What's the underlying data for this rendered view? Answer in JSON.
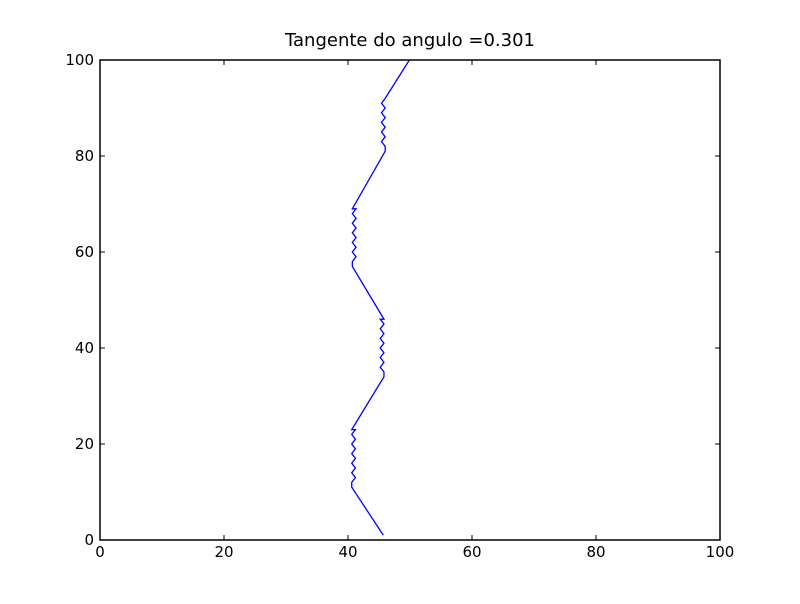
{
  "chart_data": {
    "type": "line",
    "title": "Tangente do angulo =0.301",
    "xlabel": "",
    "ylabel": "",
    "xlim": [
      0,
      100
    ],
    "ylim": [
      0,
      100
    ],
    "xticks": [
      "0",
      "20",
      "40",
      "60",
      "80",
      "100"
    ],
    "yticks": [
      "0",
      "20",
      "40",
      "60",
      "80",
      "100"
    ],
    "grid": false,
    "legend": "none",
    "series": [
      {
        "color": "#0000ff",
        "x": [
          45.7,
          40.6,
          40.6,
          41.2,
          40.6,
          41.2,
          40.6,
          41.2,
          40.6,
          41.2,
          40.6,
          41.2,
          40.6,
          41.2,
          40.6,
          45.8,
          45.8,
          45.2,
          45.8,
          45.2,
          45.8,
          45.2,
          45.8,
          45.2,
          45.8,
          45.2,
          45.8,
          45.2,
          45.8,
          40.7,
          40.7,
          41.3,
          40.7,
          41.3,
          40.7,
          41.3,
          40.7,
          41.3,
          40.7,
          41.3,
          40.7,
          41.3,
          40.7,
          46.0,
          46.0,
          45.4,
          46.0,
          45.4,
          46.0,
          45.4,
          46.0,
          45.4,
          46.0,
          45.4,
          46.0,
          49.9
        ],
        "y": [
          1.0,
          11.0,
          12.0,
          13.0,
          14.0,
          15.0,
          16.0,
          17.0,
          18.0,
          19.0,
          20.0,
          21.0,
          22.0,
          23.0,
          23.0,
          34.0,
          35.0,
          36.0,
          37.0,
          38.0,
          39.0,
          40.0,
          41.0,
          42.0,
          43.0,
          44.0,
          45.0,
          46.0,
          46.0,
          57.0,
          58.0,
          59.0,
          60.0,
          61.0,
          62.0,
          63.0,
          64.0,
          65.0,
          66.0,
          67.0,
          68.0,
          69.0,
          69.0,
          81.0,
          82.0,
          83.0,
          84.0,
          85.0,
          86.0,
          87.0,
          88.0,
          89.0,
          90.0,
          91.0,
          92.0,
          100.0
        ]
      }
    ]
  }
}
